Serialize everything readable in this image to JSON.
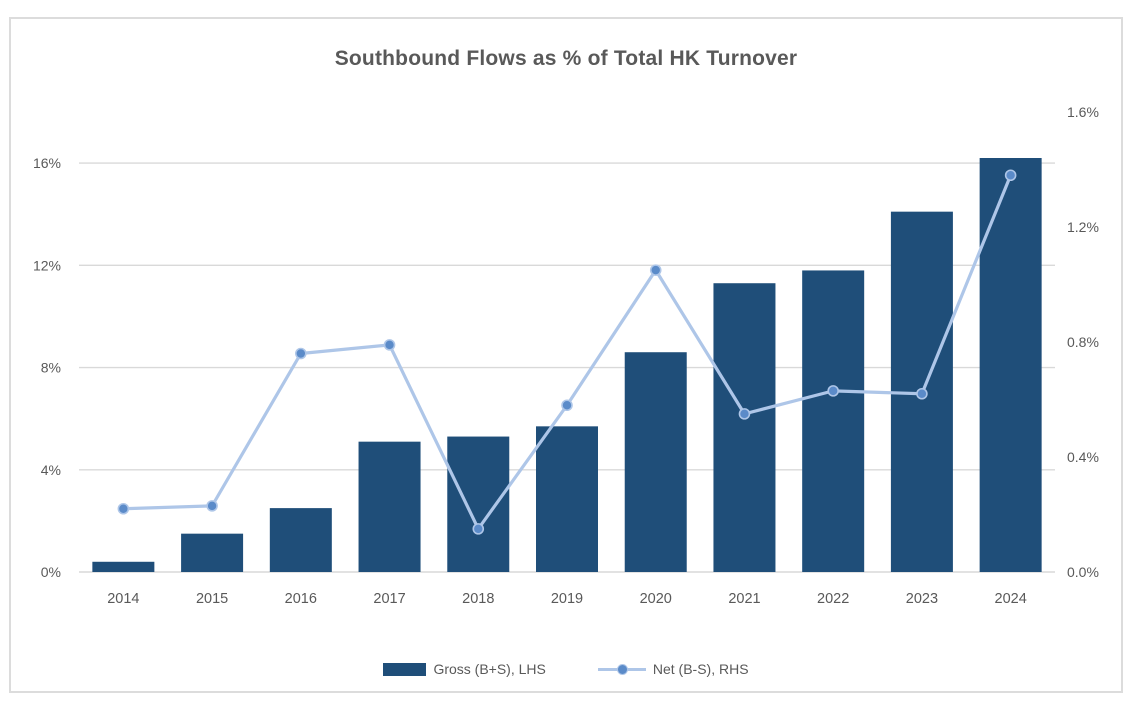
{
  "window": {
    "background": "#ffffff",
    "frame_border_color": "#dcdcdc"
  },
  "chart_data": {
    "type": "combo",
    "subtype": [
      "bar",
      "line"
    ],
    "title": "Southbound Flows as % of Total HK Turnover",
    "categories": [
      "2014",
      "2015",
      "2016",
      "2017",
      "2018",
      "2019",
      "2020",
      "2021",
      "2022",
      "2023",
      "2024"
    ],
    "series": [
      {
        "name": "Gross (B+S), LHS",
        "type": "bar",
        "axis": "left",
        "values": [
          0.4,
          1.5,
          2.5,
          5.1,
          5.3,
          5.7,
          8.6,
          11.3,
          11.8,
          14.1,
          16.2
        ]
      },
      {
        "name": "Net (B-S), RHS",
        "type": "line",
        "axis": "right",
        "values": [
          0.22,
          0.23,
          0.76,
          0.79,
          0.15,
          0.58,
          1.05,
          0.55,
          0.63,
          0.62,
          1.38
        ]
      }
    ],
    "axes": {
      "left": {
        "min": 0,
        "max": 18,
        "tick_labels": [
          "0%",
          "4%",
          "8%",
          "12%",
          "16%"
        ],
        "tick_values": [
          0,
          4,
          8,
          12,
          16
        ]
      },
      "right": {
        "min": 0,
        "max": 1.6,
        "tick_labels": [
          "0.0%",
          "0.4%",
          "0.8%",
          "1.2%",
          "1.6%"
        ],
        "tick_values": [
          0,
          0.4,
          0.8,
          1.2,
          1.6
        ]
      }
    },
    "grid": true,
    "legend_position": "bottom",
    "colors": {
      "bar": "#1f4e79",
      "line": "#aec6e8",
      "marker_fill": "#5b8bc9",
      "marker_stroke": "#aec6e8",
      "grid": "#d9d9d9",
      "axis_text": "#595959",
      "title_text": "#595959"
    }
  }
}
